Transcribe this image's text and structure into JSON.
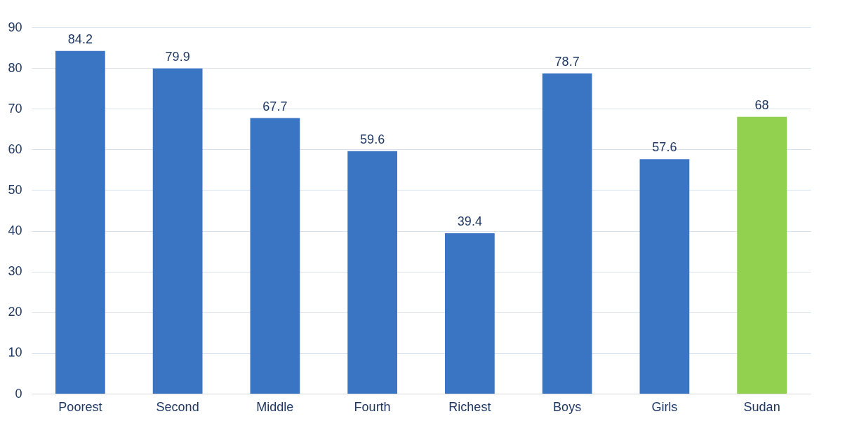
{
  "chart_data": {
    "type": "bar",
    "categories": [
      "Poorest",
      "Second",
      "Middle",
      "Fourth",
      "Richest",
      "Boys",
      "Girls",
      "Sudan"
    ],
    "values": [
      84.2,
      79.9,
      67.7,
      59.6,
      39.4,
      78.7,
      57.6,
      68
    ],
    "colors": [
      "#3a75c4",
      "#3a75c4",
      "#3a75c4",
      "#3a75c4",
      "#3a75c4",
      "#3a75c4",
      "#3a75c4",
      "#92d050"
    ],
    "ylim": [
      0,
      90
    ],
    "yticks": [
      0,
      10,
      20,
      30,
      40,
      50,
      60,
      70,
      80,
      90
    ],
    "grid": "y",
    "data_labels": true
  }
}
